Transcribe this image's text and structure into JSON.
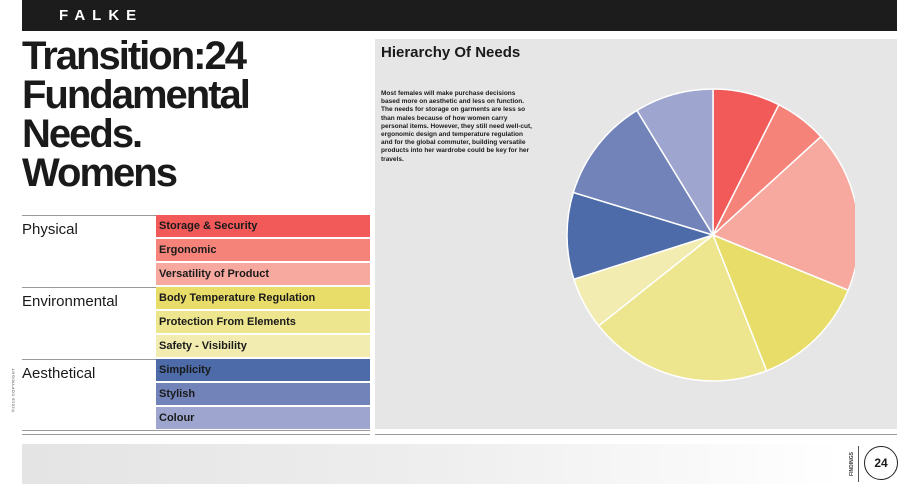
{
  "header": {
    "brand": "FALKE"
  },
  "title_lines": [
    "Transition:24",
    "Fundamental",
    "Needs.",
    "Womens"
  ],
  "copyright": "©2018 COPYRIGHT",
  "table": {
    "groups": [
      {
        "label": "Physical",
        "rows": [
          {
            "label": "Storage & Security",
            "color": "#f25a5a"
          },
          {
            "label": "Ergonomic",
            "color": "#f5837a"
          },
          {
            "label": "Versatility of Product",
            "color": "#f8a99f"
          }
        ]
      },
      {
        "label": "Environmental",
        "rows": [
          {
            "label": "Body Temperature Regulation",
            "color": "#e8dd68"
          },
          {
            "label": "Protection From Elements",
            "color": "#ede68f"
          },
          {
            "label": "Safety - Visibility",
            "color": "#f2ecb1"
          }
        ]
      },
      {
        "label": "Aesthetical",
        "rows": [
          {
            "label": "Simplicity",
            "color": "#4d6ba8"
          },
          {
            "label": "Stylish",
            "color": "#7283ba"
          },
          {
            "label": "Colour",
            "color": "#9ea6cf"
          }
        ]
      }
    ]
  },
  "panel": {
    "title": "Hierarchy Of Needs",
    "text": "Most females will make purchase decisions based more on aesthetic and less on function. The needs for storage on garments are less so than males because of how women carry personal items. However, they still need well-cut, ergonomic design and temperature regulation and for the global commuter, building versatile products into her wardrobe could be key for her travels."
  },
  "chart_data": {
    "type": "pie",
    "title": "Hierarchy Of Needs",
    "categories": [
      "Storage & Security",
      "Ergonomic",
      "Versatility of Product",
      "Body Temperature Regulation",
      "Protection From Elements",
      "Safety - Visibility",
      "Simplicity",
      "Stylish",
      "Colour"
    ],
    "values": [
      7.6,
      5.9,
      18.3,
      13.1,
      20.7,
      5.9,
      9.8,
      11.8,
      8.9
    ],
    "colors": [
      "#f25a5a",
      "#f5837a",
      "#f8a99f",
      "#e8dd68",
      "#ede68f",
      "#f2ecb1",
      "#4d6ba8",
      "#7283ba",
      "#9ea6cf"
    ]
  },
  "footer": {
    "section": "FINDINGS",
    "page_number": "24"
  }
}
